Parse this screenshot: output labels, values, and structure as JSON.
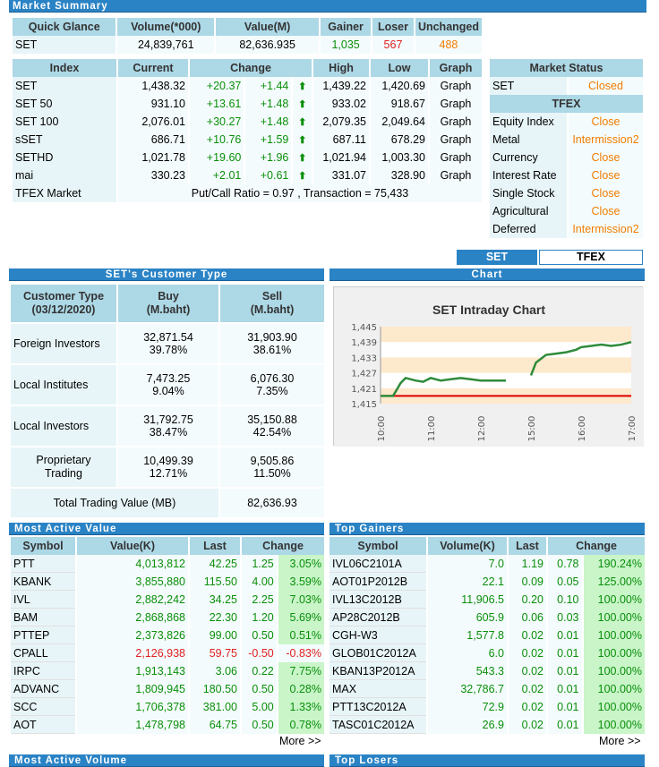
{
  "title": "Market Summary",
  "quick": {
    "headers": [
      "Quick Glance",
      "Volume(*000)",
      "Value(M)",
      "Gainer",
      "Loser",
      "Unchanged"
    ],
    "row": [
      "SET",
      "24,839,761",
      "82,636.935",
      "1,035",
      "567",
      "488"
    ]
  },
  "index": {
    "headers": [
      "Index",
      "Current",
      "Change",
      "High",
      "Low",
      "Graph"
    ],
    "rows": [
      [
        "SET",
        "1,438.32",
        "+20.37",
        "+1.44",
        "1,439.22",
        "1,420.69",
        "Graph"
      ],
      [
        "SET 50",
        "931.10",
        "+13.61",
        "+1.48",
        "933.02",
        "918.67",
        "Graph"
      ],
      [
        "SET 100",
        "2,076.01",
        "+30.27",
        "+1.48",
        "2,079.35",
        "2,049.64",
        "Graph"
      ],
      [
        "sSET",
        "686.71",
        "+10.76",
        "+1.59",
        "687.11",
        "678.29",
        "Graph"
      ],
      [
        "SETHD",
        "1,021.78",
        "+19.60",
        "+1.96",
        "1,021.94",
        "1,003.30",
        "Graph"
      ],
      [
        "mai",
        "330.23",
        "+2.01",
        "+0.61",
        "331.07",
        "328.90",
        "Graph"
      ]
    ],
    "tfex_label": "TFEX Market",
    "tfex_text": "Put/Call Ratio = 0.97 , Transaction = 75,433"
  },
  "market_status": {
    "header": "Market Status",
    "set_label": "SET",
    "set_status": "Closed",
    "tfex_header": "TFEX",
    "rows": [
      [
        "Equity Index",
        "Close"
      ],
      [
        "Metal",
        "Intermission2"
      ],
      [
        "Currency",
        "Close"
      ],
      [
        "Interest Rate",
        "Close"
      ],
      [
        "Single Stock",
        "Close"
      ],
      [
        "Agricultural",
        "Close"
      ],
      [
        "Deferred",
        "Intermission2"
      ]
    ]
  },
  "tabs": [
    "SET",
    "TFEX"
  ],
  "customer": {
    "title": "SET's Customer Type",
    "headers": [
      "Customer Type (03/12/2020)",
      "Buy (M.baht)",
      "Sell (M.baht)"
    ],
    "rows": [
      [
        "Foreign Investors",
        "32,871.54",
        "39.78%",
        "31,903.90",
        "38.61%"
      ],
      [
        "Local Institutes",
        "7,473.25",
        "9.04%",
        "6,076.30",
        "7.35%"
      ],
      [
        "Local Investors",
        "31,792.75",
        "38.47%",
        "35,150.88",
        "42.54%"
      ],
      [
        "Proprietary Trading",
        "10,499.39",
        "12.71%",
        "9,505.86",
        "11.50%"
      ]
    ],
    "total_label": "Total Trading Value (MB)",
    "total_value": "82,636.93"
  },
  "chart_section": "Chart",
  "chart_data": {
    "type": "line",
    "title": "SET Intraday Chart",
    "xlabel": "",
    "ylabel": "",
    "x_ticks": [
      "10:00",
      "11:00",
      "12:00",
      "15:00",
      "16:00",
      "17:00"
    ],
    "y_ticks": [
      "1,445",
      "1,439",
      "1,433",
      "1,427",
      "1,421",
      "1,415"
    ],
    "ylim": [
      1415,
      1445
    ],
    "prev_close": 1418,
    "series": [
      {
        "values": [
          [
            0,
            1418
          ],
          [
            0.25,
            1418
          ],
          [
            0.4,
            1423
          ],
          [
            0.5,
            1425
          ],
          [
            0.7,
            1424
          ],
          [
            0.85,
            1423.5
          ],
          [
            1,
            1425
          ],
          [
            1.2,
            1424
          ],
          [
            1.4,
            1424.5
          ],
          [
            1.6,
            1425
          ],
          [
            1.8,
            1424.5
          ],
          [
            2,
            1424
          ],
          [
            2.3,
            1424
          ],
          [
            2.5,
            1424
          ],
          [
            3,
            1426
          ],
          [
            3.1,
            1431
          ],
          [
            3.3,
            1434
          ],
          [
            3.5,
            1434.5
          ],
          [
            3.7,
            1435
          ],
          [
            3.9,
            1436
          ],
          [
            4,
            1437
          ],
          [
            4.2,
            1437.5
          ],
          [
            4.4,
            1438
          ],
          [
            4.6,
            1437.5
          ],
          [
            4.8,
            1438
          ],
          [
            5,
            1439
          ]
        ]
      }
    ]
  },
  "most_active": {
    "title": "Most Active Value",
    "headers": [
      "Symbol",
      "Value(K)",
      "Last",
      "Change"
    ],
    "rows": [
      [
        "PTT",
        "4,013,812",
        "42.25",
        "1.25",
        "3.05%",
        "g"
      ],
      [
        "KBANK",
        "3,855,880",
        "115.50",
        "4.00",
        "3.59%",
        "g"
      ],
      [
        "IVL",
        "2,882,242",
        "34.25",
        "2.25",
        "7.03%",
        "g"
      ],
      [
        "BAM",
        "2,868,868",
        "22.30",
        "1.20",
        "5.69%",
        "g"
      ],
      [
        "PTTEP",
        "2,373,826",
        "99.00",
        "0.50",
        "0.51%",
        "g"
      ],
      [
        "CPALL",
        "2,126,938",
        "59.75",
        "-0.50",
        "-0.83%",
        "r"
      ],
      [
        "IRPC",
        "1,913,143",
        "3.06",
        "0.22",
        "7.75%",
        "g"
      ],
      [
        "ADVANC",
        "1,809,945",
        "180.50",
        "0.50",
        "0.28%",
        "g"
      ],
      [
        "SCC",
        "1,706,378",
        "381.00",
        "5.00",
        "1.33%",
        "g"
      ],
      [
        "AOT",
        "1,478,798",
        "64.75",
        "0.50",
        "0.78%",
        "g"
      ]
    ],
    "more": "More >>"
  },
  "top_gainers": {
    "title": "Top Gainers",
    "headers": [
      "Symbol",
      "Volume(K)",
      "Last",
      "Change"
    ],
    "rows": [
      [
        "IVL06C2101A",
        "7.0",
        "1.19",
        "0.78",
        "190.24%"
      ],
      [
        "AOT01P2012B",
        "22.1",
        "0.09",
        "0.05",
        "125.00%"
      ],
      [
        "IVL13C2012B",
        "11,906.5",
        "0.20",
        "0.10",
        "100.00%"
      ],
      [
        "AP28C2012B",
        "605.9",
        "0.06",
        "0.03",
        "100.00%"
      ],
      [
        "CGH-W3",
        "1,577.8",
        "0.02",
        "0.01",
        "100.00%"
      ],
      [
        "GLOB01C2012A",
        "6.0",
        "0.02",
        "0.01",
        "100.00%"
      ],
      [
        "KBAN13P2012A",
        "543.3",
        "0.02",
        "0.01",
        "100.00%"
      ],
      [
        "MAX",
        "32,786.7",
        "0.02",
        "0.01",
        "100.00%"
      ],
      [
        "PTT13C2012A",
        "72.9",
        "0.02",
        "0.01",
        "100.00%"
      ],
      [
        "TASC01C2012A",
        "26.9",
        "0.02",
        "0.01",
        "100.00%"
      ]
    ],
    "more": "More >>"
  },
  "bottom_left": "Most Active Volume",
  "bottom_right": "Top Losers"
}
